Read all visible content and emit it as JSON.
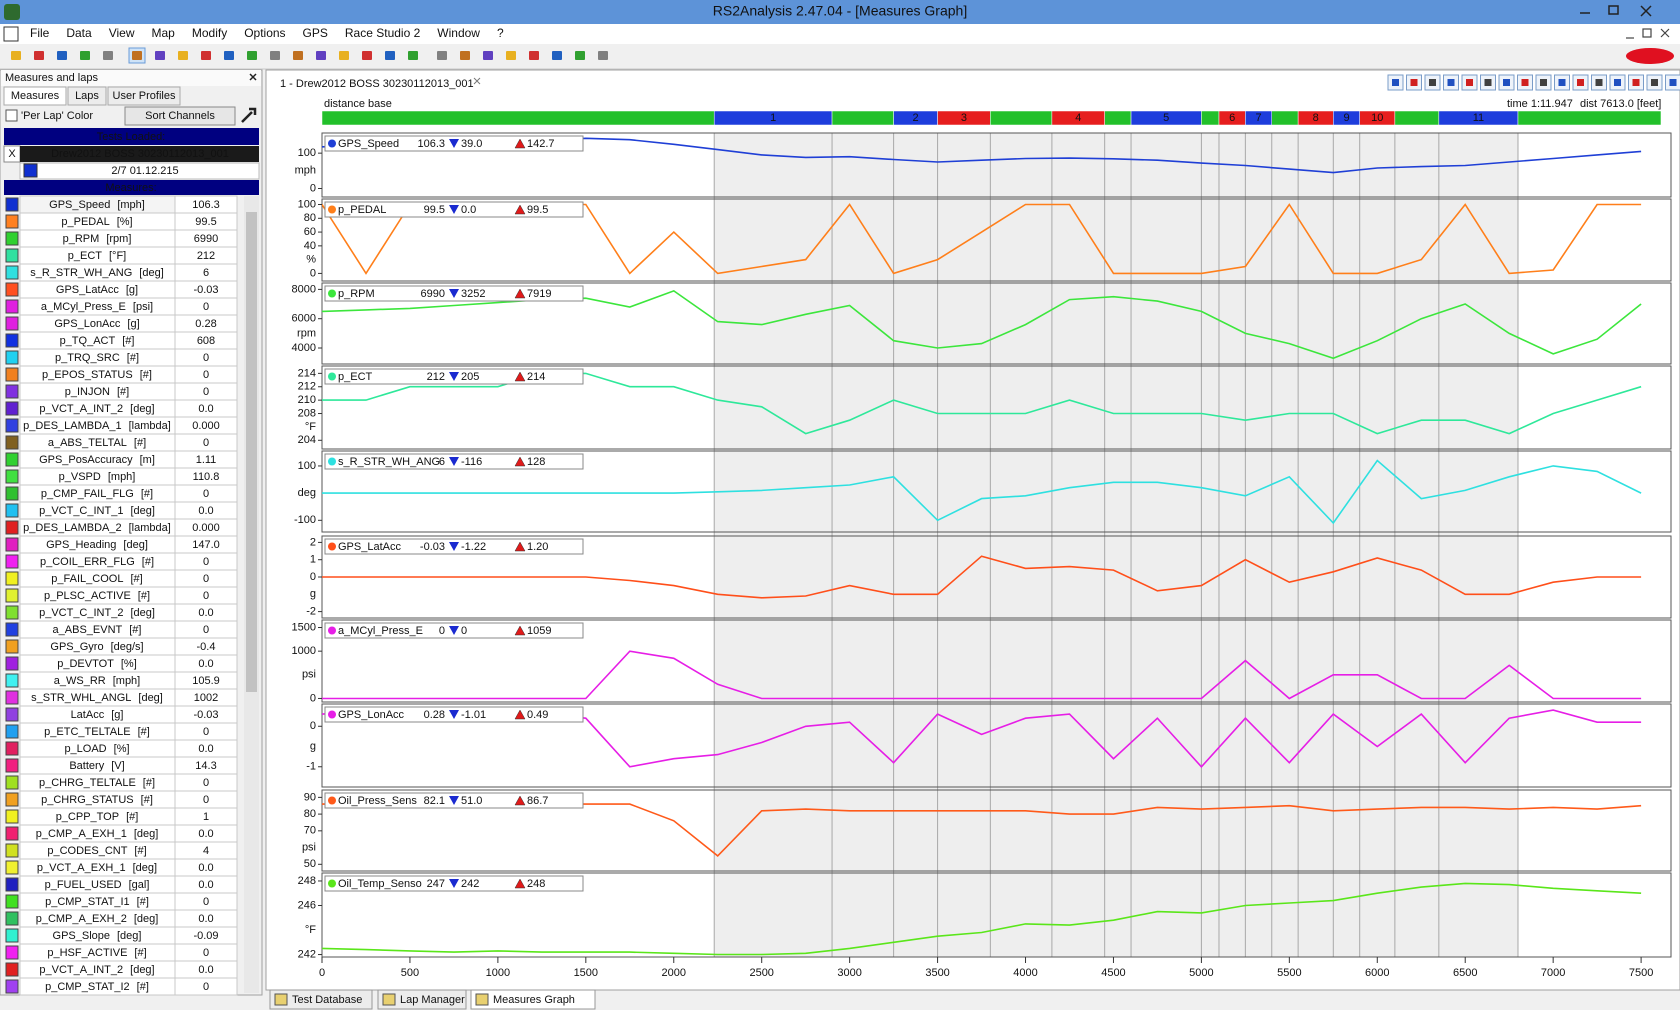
{
  "window": {
    "title": "RS2Analysis 2.47.04 - [Measures Graph]"
  },
  "menu": [
    "File",
    "Data",
    "View",
    "Map",
    "Modify",
    "Options",
    "GPS",
    "Race Studio 2",
    "Window",
    "?"
  ],
  "sidebar": {
    "title": "Measures and laps",
    "tabs": [
      "Measures",
      "Laps",
      "User Profiles"
    ],
    "per_lap_color": "'Per Lap' Color",
    "sort_button": "Sort Channels",
    "tests_header": "Tests Loaded:",
    "test": {
      "close": "X",
      "name": "Drew2012 BOSS 30230112013_001",
      "date": "2/7 01.12.215"
    },
    "measures_header": "Measures:",
    "measures": [
      {
        "name": "GPS_Speed",
        "unit": "[mph]",
        "value": "106.3",
        "color": "#1030d0"
      },
      {
        "name": "p_PEDAL",
        "unit": "[%]",
        "value": "99.5",
        "color": "#ff8020"
      },
      {
        "name": "p_RPM",
        "unit": "[rpm]",
        "value": "6990",
        "color": "#30d030"
      },
      {
        "name": "p_ECT",
        "unit": "[°F]",
        "value": "212",
        "color": "#30e0a0"
      },
      {
        "name": "s_R_STR_WH_ANG",
        "unit": "[deg]",
        "value": "6",
        "color": "#30e0e0"
      },
      {
        "name": "GPS_LatAcc",
        "unit": "[g]",
        "value": "-0.03",
        "color": "#ff5020"
      },
      {
        "name": "a_MCyl_Press_E",
        "unit": "[psi]",
        "value": "0",
        "color": "#e020e0"
      },
      {
        "name": "GPS_LonAcc",
        "unit": "[g]",
        "value": "0.28",
        "color": "#e020e0"
      },
      {
        "name": "p_TQ_ACT",
        "unit": "[#]",
        "value": "608",
        "color": "#1030e0"
      },
      {
        "name": "p_TRQ_SRC",
        "unit": "[#]",
        "value": "0",
        "color": "#20d0f0"
      },
      {
        "name": "p_EPOS_STATUS",
        "unit": "[#]",
        "value": "0",
        "color": "#f08020"
      },
      {
        "name": "p_INJON",
        "unit": "[#]",
        "value": "0",
        "color": "#8030e0"
      },
      {
        "name": "p_VCT_A_INT_2",
        "unit": "[deg]",
        "value": "0.0",
        "color": "#6020d0"
      },
      {
        "name": "p_DES_LAMBDA_1",
        "unit": "[lambda]",
        "value": "0.000",
        "color": "#3040e0"
      },
      {
        "name": "a_ABS_TELTAL",
        "unit": "[#]",
        "value": "0",
        "color": "#806020"
      },
      {
        "name": "GPS_PosAccuracy",
        "unit": "[m]",
        "value": "1.11",
        "color": "#30d030"
      },
      {
        "name": "p_VSPD",
        "unit": "[mph]",
        "value": "110.8",
        "color": "#40e040"
      },
      {
        "name": "p_CMP_FAIL_FLG",
        "unit": "[#]",
        "value": "0",
        "color": "#30c030"
      },
      {
        "name": "p_VCT_C_INT_1",
        "unit": "[deg]",
        "value": "0.0",
        "color": "#20c0f0"
      },
      {
        "name": "p_DES_LAMBDA_2",
        "unit": "[lambda]",
        "value": "0.000",
        "color": "#e02020"
      },
      {
        "name": "GPS_Heading",
        "unit": "[deg]",
        "value": "147.0",
        "color": "#e020c0"
      },
      {
        "name": "p_COIL_ERR_FLG",
        "unit": "[#]",
        "value": "0",
        "color": "#f020f0"
      },
      {
        "name": "p_FAIL_COOL",
        "unit": "[#]",
        "value": "0",
        "color": "#f0f020"
      },
      {
        "name": "p_PLSC_ACTIVE",
        "unit": "[#]",
        "value": "0",
        "color": "#e0f030"
      },
      {
        "name": "p_VCT_C_INT_2",
        "unit": "[deg]",
        "value": "0.0",
        "color": "#80e030"
      },
      {
        "name": "a_ABS_EVNT",
        "unit": "[#]",
        "value": "0",
        "color": "#2040e0"
      },
      {
        "name": "GPS_Gyro",
        "unit": "[deg/s]",
        "value": "-0.4",
        "color": "#f0a020"
      },
      {
        "name": "p_DEVTOT",
        "unit": "[%]",
        "value": "0.0",
        "color": "#a020e0"
      },
      {
        "name": "a_WS_RR",
        "unit": "[mph]",
        "value": "105.9",
        "color": "#40f0f0"
      },
      {
        "name": "s_STR_WHL_ANGL",
        "unit": "[deg]",
        "value": "1002",
        "color": "#e030e0"
      },
      {
        "name": "LatAcc",
        "unit": "[g]",
        "value": "-0.03",
        "color": "#9040e0"
      },
      {
        "name": "p_ETC_TELTALE",
        "unit": "[#]",
        "value": "0",
        "color": "#20a0f0"
      },
      {
        "name": "p_LOAD",
        "unit": "[%]",
        "value": "0.0",
        "color": "#e02060"
      },
      {
        "name": "Battery",
        "unit": "[V]",
        "value": "14.3",
        "color": "#f02080"
      },
      {
        "name": "p_CHRG_TELTALE",
        "unit": "[#]",
        "value": "0",
        "color": "#a0e020"
      },
      {
        "name": "p_CHRG_STATUS",
        "unit": "[#]",
        "value": "0",
        "color": "#f0a020"
      },
      {
        "name": "p_CPP_TOP",
        "unit": "[#]",
        "value": "1",
        "color": "#f0f020"
      },
      {
        "name": "p_CMP_A_EXH_1",
        "unit": "[deg]",
        "value": "0.0",
        "color": "#f02070"
      },
      {
        "name": "p_CODES_CNT",
        "unit": "[#]",
        "value": "4",
        "color": "#d0e020"
      },
      {
        "name": "p_VCT_A_EXH_1",
        "unit": "[deg]",
        "value": "0.0",
        "color": "#f0f030"
      },
      {
        "name": "p_FUEL_USED",
        "unit": "[gal]",
        "value": "0.0",
        "color": "#2020c0"
      },
      {
        "name": "p_CMP_STAT_I1",
        "unit": "[#]",
        "value": "0",
        "color": "#40e020"
      },
      {
        "name": "p_CMP_A_EXH_2",
        "unit": "[deg]",
        "value": "0.0",
        "color": "#30c060"
      },
      {
        "name": "GPS_Slope",
        "unit": "[deg]",
        "value": "-0.09",
        "color": "#30f0d0"
      },
      {
        "name": "p_HSF_ACTIVE",
        "unit": "[#]",
        "value": "0",
        "color": "#f020f0"
      },
      {
        "name": "p_VCT_A_INT_2",
        "unit": "[deg]",
        "value": "0.0",
        "color": "#e02020"
      },
      {
        "name": "p_CMP_STAT_I2",
        "unit": "[#]",
        "value": "0",
        "color": "#a040f0"
      }
    ]
  },
  "graph": {
    "tab": "1 - Drew2012 BOSS 30230112013_001",
    "base": "distance base",
    "time": "time 1:11.947",
    "dist": "dist 7613.0 [feet]",
    "laps": [
      {
        "label": null,
        "start": 0,
        "end": 2230,
        "color": "#22c02a"
      },
      {
        "label": "1",
        "start": 2230,
        "end": 2900,
        "color": "#1e3ddc"
      },
      {
        "label": null,
        "start": 2900,
        "end": 3250,
        "color": "#22c02a"
      },
      {
        "label": "2",
        "start": 3250,
        "end": 3500,
        "color": "#1e3ddc"
      },
      {
        "label": "3",
        "start": 3500,
        "end": 3800,
        "color": "#e61e1e"
      },
      {
        "label": null,
        "start": 3800,
        "end": 4150,
        "color": "#22c02a"
      },
      {
        "label": "4",
        "start": 4150,
        "end": 4450,
        "color": "#e61e1e"
      },
      {
        "label": null,
        "start": 4450,
        "end": 4600,
        "color": "#22c02a"
      },
      {
        "label": "5",
        "start": 4600,
        "end": 5000,
        "color": "#1e3ddc"
      },
      {
        "label": null,
        "start": 5000,
        "end": 5100,
        "color": "#22c02a"
      },
      {
        "label": "6",
        "start": 5100,
        "end": 5250,
        "color": "#e61e1e"
      },
      {
        "label": "7",
        "start": 5250,
        "end": 5400,
        "color": "#1e3ddc"
      },
      {
        "label": null,
        "start": 5400,
        "end": 5550,
        "color": "#22c02a"
      },
      {
        "label": "8",
        "start": 5550,
        "end": 5750,
        "color": "#e61e1e"
      },
      {
        "label": "9",
        "start": 5750,
        "end": 5900,
        "color": "#1e3ddc"
      },
      {
        "label": "10",
        "start": 5900,
        "end": 6100,
        "color": "#e61e1e"
      },
      {
        "label": null,
        "start": 6100,
        "end": 6350,
        "color": "#22c02a"
      },
      {
        "label": "11",
        "start": 6350,
        "end": 6800,
        "color": "#1e3ddc"
      },
      {
        "label": null,
        "start": 6800,
        "end": 7613,
        "color": "#22c02a"
      }
    ],
    "xlim": [
      0,
      7670
    ],
    "xticks": [
      0,
      500,
      1000,
      1500,
      2000,
      2500,
      3000,
      3500,
      4000,
      4500,
      5000,
      5500,
      6000,
      6500,
      7000,
      7500
    ],
    "x": [
      0,
      250,
      500,
      750,
      1000,
      1250,
      1500,
      1750,
      2000,
      2250,
      2500,
      2750,
      3000,
      3250,
      3500,
      3750,
      4000,
      4250,
      4500,
      4750,
      5000,
      5250,
      5500,
      5750,
      6000,
      6250,
      6500,
      6750,
      7000,
      7250,
      7500
    ],
    "channels": [
      {
        "name": "GPS_Speed",
        "value": "106.3",
        "min": "39.0",
        "max": "142.7",
        "color": "#1f3fd6",
        "unit": "mph",
        "ylim": [
          -24,
          157
        ],
        "yticks": [
          0,
          100
        ],
        "values": [
          118,
          120,
          123,
          126,
          130,
          135,
          142,
          138,
          125,
          110,
          95,
          88,
          90,
          82,
          75,
          80,
          85,
          86,
          84,
          80,
          72,
          65,
          55,
          45,
          58,
          62,
          65,
          75,
          85,
          95,
          105
        ]
      },
      {
        "name": "p_PEDAL",
        "value": "99.5",
        "min": "0.0",
        "max": "99.5",
        "color": "#ff7f1a",
        "unit": "%",
        "ylim": [
          -11,
          108
        ],
        "yticks": [
          0,
          40,
          60,
          80,
          100
        ],
        "values": [
          100,
          0,
          100,
          100,
          100,
          100,
          100,
          0,
          60,
          0,
          10,
          20,
          100,
          0,
          20,
          60,
          100,
          100,
          0,
          0,
          0,
          10,
          100,
          0,
          0,
          20,
          100,
          0,
          5,
          100,
          100
        ]
      },
      {
        "name": "p_RPM",
        "value": "6990",
        "min": "3252",
        "max": "7919",
        "color": "#3ce63c",
        "unit": "rpm",
        "ylim": [
          2909,
          8436
        ],
        "yticks": [
          4000,
          6000,
          8000
        ],
        "values": [
          6500,
          6600,
          6700,
          6900,
          7100,
          7300,
          7400,
          6800,
          7900,
          5800,
          5600,
          6300,
          6900,
          4500,
          4000,
          4300,
          5600,
          7300,
          7500,
          7200,
          6500,
          5000,
          4300,
          3300,
          4500,
          6000,
          7000,
          5000,
          3600,
          4600,
          7000
        ]
      },
      {
        "name": "p_ECT",
        "value": "212",
        "min": "205",
        "max": "214",
        "color": "#2ee89a",
        "unit": "°F",
        "ylim": [
          202.7,
          215.1
        ],
        "yticks": [
          204,
          208,
          210,
          212,
          214
        ],
        "values": [
          210,
          210,
          212,
          212,
          212,
          214,
          214,
          212,
          212,
          210,
          209,
          205,
          207,
          210,
          208,
          208,
          208,
          210,
          208,
          208,
          208,
          207,
          208,
          208,
          205,
          207,
          207,
          205,
          208,
          210,
          212
        ]
      },
      {
        "name": "s_R_STR_WH_ANG",
        "value": "6",
        "min": "-116",
        "max": "128",
        "color": "#2ee0e0",
        "unit": "deg",
        "ylim": [
          -143,
          155
        ],
        "yticks": [
          -100,
          100
        ],
        "values": [
          0,
          0,
          0,
          0,
          0,
          0,
          0,
          0,
          0,
          5,
          10,
          20,
          30,
          60,
          -100,
          -20,
          -10,
          20,
          40,
          40,
          20,
          -10,
          60,
          -110,
          120,
          -20,
          10,
          60,
          100,
          80,
          0
        ]
      },
      {
        "name": "GPS_LatAcc",
        "value": "-0.03",
        "min": "-1.22",
        "max": "1.20",
        "color": "#ff4f1a",
        "unit": "g",
        "ylim": [
          -2.37,
          2.37
        ],
        "yticks": [
          -2,
          0,
          1,
          2
        ],
        "values": [
          0,
          0,
          0,
          0,
          0,
          0,
          0,
          -0.2,
          -0.5,
          -1,
          -1.2,
          -1.1,
          -0.5,
          -1,
          -1,
          1.2,
          0.5,
          0.6,
          0.4,
          -0.8,
          -0.5,
          1,
          -0.3,
          0.3,
          1.1,
          0.4,
          -1,
          -1,
          -0.3,
          0,
          0
        ]
      },
      {
        "name": "a_MCyl_Press_E",
        "value": "0",
        "min": "0",
        "max": "1059",
        "color": "#e61ee6",
        "unit": "psi",
        "ylim": [
          -75,
          1659
        ],
        "yticks": [
          0,
          1000,
          1500
        ],
        "values": [
          0,
          0,
          0,
          0,
          0,
          0,
          0,
          1000,
          850,
          300,
          0,
          0,
          0,
          0,
          0,
          0,
          0,
          0,
          0,
          0,
          0,
          800,
          0,
          500,
          500,
          0,
          0,
          700,
          0,
          0,
          0
        ]
      },
      {
        "name": "GPS_LonAcc",
        "value": "0.28",
        "min": "-1.01",
        "max": "0.49",
        "color": "#e61ee6",
        "unit": "g",
        "ylim": [
          -1.5,
          0.55
        ],
        "yticks": [
          -1,
          0
        ],
        "values": [
          0.3,
          0.35,
          0.35,
          0.35,
          0.3,
          0.3,
          0.2,
          -1,
          -0.8,
          -0.7,
          -0.4,
          0,
          0.1,
          -0.9,
          0.3,
          -0.2,
          0.2,
          0.3,
          -0.8,
          0.2,
          -1,
          0.2,
          -0.9,
          0.3,
          -0.5,
          0.3,
          -0.9,
          0.2,
          0.4,
          0.1,
          0.1
        ]
      },
      {
        "name": "Oil_Press_Sens",
        "value": "82.1",
        "min": "51.0",
        "max": "86.7",
        "color": "#ff5a1a",
        "unit": "psi",
        "ylim": [
          46,
          94.4
        ],
        "yticks": [
          50,
          70,
          80,
          90
        ],
        "values": [
          86,
          86,
          86,
          86,
          86,
          86,
          86,
          86,
          76,
          55,
          82,
          83,
          82,
          82,
          82,
          82,
          82,
          80,
          80,
          84,
          83,
          84,
          85,
          82,
          83,
          84,
          84,
          83,
          84,
          83,
          85
        ]
      },
      {
        "name": "Oil_Temp_Senso",
        "value": "247",
        "min": "242",
        "max": "248",
        "color": "#5ae61a",
        "unit": "°F",
        "ylim": [
          241.8,
          248.65
        ],
        "yticks": [
          242,
          246,
          248
        ],
        "values": [
          242.5,
          242.4,
          242.3,
          242.2,
          242.3,
          242.2,
          242.2,
          242.2,
          242.1,
          242,
          242,
          242.1,
          242.5,
          243,
          243.5,
          243.8,
          244.5,
          244.4,
          244.8,
          245.5,
          245.4,
          246,
          246.2,
          246.4,
          247,
          247.5,
          247.8,
          247.7,
          247.4,
          247.2,
          247
        ]
      }
    ]
  },
  "bottom_tabs": [
    "Test Database",
    "Lap Manager",
    "Measures Graph"
  ]
}
